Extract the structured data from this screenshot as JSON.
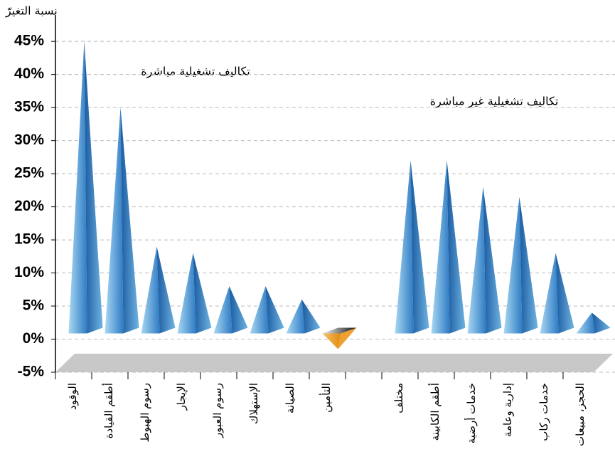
{
  "chart_data": {
    "type": "bar",
    "y_label": "نسبة التغيرّ",
    "annotations": [
      "تكاليف تشغيلية مباشرة",
      "تكاليف تشغيلية غير مباشرة"
    ],
    "categories": [
      "الوقود",
      "أطقم القيادة",
      "رسوم الهبوط",
      "الإيجار",
      "رسوم العبور",
      "الإستهلاك",
      "الصيانة",
      "التأمين",
      null,
      "مختلف",
      "أطقم الكابينة",
      "خدمات أرضية",
      "إدارية وعامة",
      "خدمات ركاب",
      "الحجز، مبيعات"
    ],
    "values": [
      45,
      35,
      14,
      13,
      8,
      8,
      6,
      -1.5,
      null,
      27,
      27,
      23,
      21.5,
      13,
      4
    ],
    "color": "#2e7bc4",
    "negative_color": "#f0a030",
    "ylim": [
      -5,
      49
    ],
    "yticks": [
      {
        "value": -5,
        "label": "-5%"
      },
      {
        "value": 0,
        "label": "0%"
      },
      {
        "value": 5,
        "label": "5%"
      },
      {
        "value": 10,
        "label": "10%"
      },
      {
        "value": 15,
        "label": "15%"
      },
      {
        "value": 20,
        "label": "20%"
      },
      {
        "value": 25,
        "label": "25%"
      },
      {
        "value": 30,
        "label": "30%"
      },
      {
        "value": 35,
        "label": "35%"
      },
      {
        "value": 40,
        "label": "40%"
      },
      {
        "value": 45,
        "label": "45%"
      }
    ],
    "grid": true
  }
}
